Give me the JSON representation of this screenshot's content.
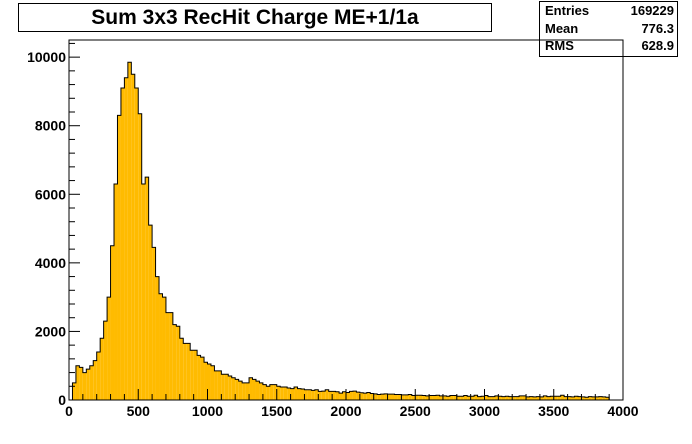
{
  "title": "Sum 3x3 RecHit Charge ME+1/1a",
  "stats": [
    {
      "label": "Entries",
      "value": "169229"
    },
    {
      "label": "Mean",
      "value": "776.3"
    },
    {
      "label": "RMS",
      "value": "628.9"
    }
  ],
  "colors": {
    "fill": "#ffbb00",
    "line": "#000000",
    "background": "#ffffff"
  },
  "chart_data": {
    "type": "bar",
    "title": "Sum 3x3 RecHit Charge ME+1/1a",
    "xlabel": "",
    "ylabel": "",
    "xlim": [
      0,
      4000
    ],
    "ylim": [
      0,
      10500
    ],
    "bin_width": 25,
    "x_ticks": [
      0,
      500,
      1000,
      1500,
      2000,
      2500,
      3000,
      3500,
      4000
    ],
    "y_ticks": [
      0,
      2000,
      4000,
      6000,
      8000,
      10000
    ],
    "grid": false,
    "legend": "none",
    "values": [
      0,
      500,
      1000,
      950,
      800,
      900,
      1000,
      1150,
      1400,
      1800,
      2300,
      3000,
      4500,
      6300,
      8300,
      9100,
      9400,
      9850,
      9500,
      9100,
      8350,
      6300,
      6500,
      5100,
      4450,
      3600,
      3100,
      3000,
      2550,
      2550,
      2200,
      2150,
      1800,
      1650,
      1650,
      1450,
      1450,
      1300,
      1250,
      1100,
      1050,
      1000,
      850,
      850,
      750,
      750,
      700,
      650,
      600,
      550,
      500,
      500,
      650,
      600,
      550,
      500,
      450,
      400,
      450,
      450,
      400,
      380,
      380,
      350,
      330,
      380,
      330,
      320,
      300,
      300,
      280,
      300,
      250,
      260,
      300,
      250,
      250,
      240,
      200,
      240,
      220,
      250,
      260,
      230,
      210,
      200,
      220,
      190,
      180,
      160,
      170,
      180,
      170,
      170,
      160,
      160,
      150,
      150,
      160,
      130,
      140,
      140,
      130,
      120,
      130,
      130,
      140,
      120,
      120,
      110,
      130,
      130,
      110,
      110,
      130,
      110,
      110,
      140,
      100,
      110,
      130,
      100,
      100,
      120,
      110,
      100,
      110,
      100,
      100,
      100,
      120,
      120,
      90,
      100,
      90,
      100,
      90,
      120,
      100,
      110,
      110,
      110,
      140,
      100,
      100,
      90,
      110,
      100,
      90,
      80,
      100,
      90,
      90,
      100,
      90,
      80
    ]
  }
}
